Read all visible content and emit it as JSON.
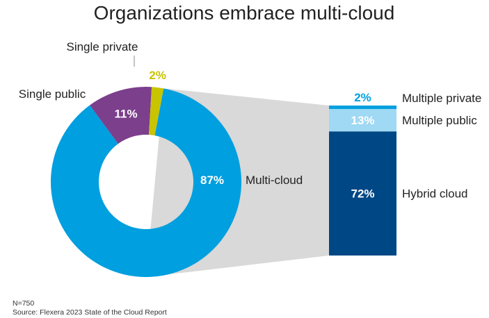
{
  "chart_data": [
    {
      "type": "pie",
      "title": "Organizations embrace multi-cloud",
      "categories": [
        "Multi-cloud",
        "Single public",
        "Single private"
      ],
      "values": [
        87,
        11,
        2
      ],
      "value_labels": [
        "87%",
        "11%",
        "2%"
      ],
      "colors": [
        "#009fdf",
        "#7b3f8c",
        "#c8c400"
      ]
    },
    {
      "type": "bar",
      "stacked": true,
      "categories": [
        "Hybrid cloud",
        "Multiple public",
        "Multiple private"
      ],
      "values": [
        72,
        13,
        2
      ],
      "value_labels": [
        "72%",
        "13%",
        "2%"
      ],
      "colors": [
        "#004785",
        "#9fd9f3",
        "#009fdf"
      ]
    }
  ],
  "footer": {
    "n": "N=750",
    "source": "Source: Flexera 2023 State of the Cloud Report"
  }
}
